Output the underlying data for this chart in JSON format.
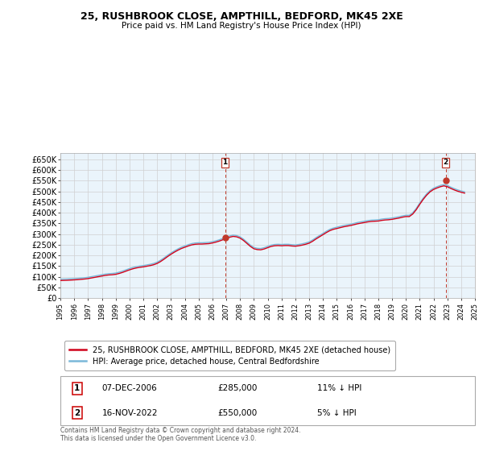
{
  "title": "25, RUSHBROOK CLOSE, AMPTHILL, BEDFORD, MK45 2XE",
  "subtitle": "Price paid vs. HM Land Registry's House Price Index (HPI)",
  "ylim": [
    0,
    680000
  ],
  "yticks": [
    0,
    50000,
    100000,
    150000,
    200000,
    250000,
    300000,
    350000,
    400000,
    450000,
    500000,
    550000,
    600000,
    650000
  ],
  "ytick_labels": [
    "£0",
    "£50K",
    "£100K",
    "£150K",
    "£200K",
    "£250K",
    "£300K",
    "£350K",
    "£400K",
    "£450K",
    "£500K",
    "£550K",
    "£600K",
    "£650K"
  ],
  "sale1_date": 2006.92,
  "sale1_price": 285000,
  "sale1_label": "1",
  "sale2_date": 2022.88,
  "sale2_price": 550000,
  "sale2_label": "2",
  "hpi_color": "#7ab8d9",
  "price_color": "#d0021b",
  "sale_marker_color": "#c0392b",
  "vline_color": "#c0392b",
  "grid_color": "#d0d0d0",
  "background_color": "#ffffff",
  "chart_bg": "#eaf4fb",
  "legend1_label": "25, RUSHBROOK CLOSE, AMPTHILL, BEDFORD, MK45 2XE (detached house)",
  "legend2_label": "HPI: Average price, detached house, Central Bedfordshire",
  "table_row1": [
    "1",
    "07-DEC-2006",
    "£285,000",
    "11% ↓ HPI"
  ],
  "table_row2": [
    "2",
    "16-NOV-2022",
    "£550,000",
    "5% ↓ HPI"
  ],
  "footer": "Contains HM Land Registry data © Crown copyright and database right 2024.\nThis data is licensed under the Open Government Licence v3.0.",
  "hpi_data_years": [
    1995.0,
    1995.25,
    1995.5,
    1995.75,
    1996.0,
    1996.25,
    1996.5,
    1996.75,
    1997.0,
    1997.25,
    1997.5,
    1997.75,
    1998.0,
    1998.25,
    1998.5,
    1998.75,
    1999.0,
    1999.25,
    1999.5,
    1999.75,
    2000.0,
    2000.25,
    2000.5,
    2000.75,
    2001.0,
    2001.25,
    2001.5,
    2001.75,
    2002.0,
    2002.25,
    2002.5,
    2002.75,
    2003.0,
    2003.25,
    2003.5,
    2003.75,
    2004.0,
    2004.25,
    2004.5,
    2004.75,
    2005.0,
    2005.25,
    2005.5,
    2005.75,
    2006.0,
    2006.25,
    2006.5,
    2006.75,
    2007.0,
    2007.25,
    2007.5,
    2007.75,
    2008.0,
    2008.25,
    2008.5,
    2008.75,
    2009.0,
    2009.25,
    2009.5,
    2009.75,
    2010.0,
    2010.25,
    2010.5,
    2010.75,
    2011.0,
    2011.25,
    2011.5,
    2011.75,
    2012.0,
    2012.25,
    2012.5,
    2012.75,
    2013.0,
    2013.25,
    2013.5,
    2013.75,
    2014.0,
    2014.25,
    2014.5,
    2014.75,
    2015.0,
    2015.25,
    2015.5,
    2015.75,
    2016.0,
    2016.25,
    2016.5,
    2016.75,
    2017.0,
    2017.25,
    2017.5,
    2017.75,
    2018.0,
    2018.25,
    2018.5,
    2018.75,
    2019.0,
    2019.25,
    2019.5,
    2019.75,
    2020.0,
    2020.25,
    2020.5,
    2020.75,
    2021.0,
    2021.25,
    2021.5,
    2021.75,
    2022.0,
    2022.25,
    2022.5,
    2022.75,
    2023.0,
    2023.25,
    2023.5,
    2023.75,
    2024.0,
    2024.25
  ],
  "hpi_data_values": [
    88000,
    88500,
    89000,
    90000,
    91000,
    92000,
    93500,
    95000,
    97000,
    100000,
    103000,
    106000,
    109000,
    112000,
    114000,
    115000,
    117000,
    121000,
    126000,
    132000,
    138000,
    143000,
    147000,
    150000,
    152000,
    155000,
    158000,
    162000,
    168000,
    177000,
    188000,
    200000,
    211000,
    221000,
    230000,
    238000,
    244000,
    250000,
    255000,
    258000,
    259000,
    259000,
    260000,
    261000,
    264000,
    268000,
    273000,
    279000,
    285000,
    291000,
    295000,
    293000,
    287000,
    276000,
    262000,
    248000,
    237000,
    233000,
    232000,
    236000,
    242000,
    248000,
    251000,
    252000,
    251000,
    252000,
    252000,
    250000,
    249000,
    251000,
    254000,
    258000,
    263000,
    272000,
    283000,
    293000,
    303000,
    313000,
    322000,
    328000,
    332000,
    336000,
    340000,
    343000,
    346000,
    350000,
    354000,
    357000,
    360000,
    363000,
    365000,
    366000,
    367000,
    370000,
    372000,
    373000,
    375000,
    378000,
    381000,
    385000,
    388000,
    388000,
    400000,
    420000,
    445000,
    468000,
    488000,
    504000,
    515000,
    522000,
    528000,
    532000,
    528000,
    520000,
    513000,
    507000,
    502000,
    498000
  ],
  "price_data_years": [
    1995.0,
    1995.25,
    1995.5,
    1995.75,
    1996.0,
    1996.25,
    1996.5,
    1996.75,
    1997.0,
    1997.25,
    1997.5,
    1997.75,
    1998.0,
    1998.25,
    1998.5,
    1998.75,
    1999.0,
    1999.25,
    1999.5,
    1999.75,
    2000.0,
    2000.25,
    2000.5,
    2000.75,
    2001.0,
    2001.25,
    2001.5,
    2001.75,
    2002.0,
    2002.25,
    2002.5,
    2002.75,
    2003.0,
    2003.25,
    2003.5,
    2003.75,
    2004.0,
    2004.25,
    2004.5,
    2004.75,
    2005.0,
    2005.25,
    2005.5,
    2005.75,
    2006.0,
    2006.25,
    2006.5,
    2006.75,
    2007.0,
    2007.25,
    2007.5,
    2007.75,
    2008.0,
    2008.25,
    2008.5,
    2008.75,
    2009.0,
    2009.25,
    2009.5,
    2009.75,
    2010.0,
    2010.25,
    2010.5,
    2010.75,
    2011.0,
    2011.25,
    2011.5,
    2011.75,
    2012.0,
    2012.25,
    2012.5,
    2012.75,
    2013.0,
    2013.25,
    2013.5,
    2013.75,
    2014.0,
    2014.25,
    2014.5,
    2014.75,
    2015.0,
    2015.25,
    2015.5,
    2015.75,
    2016.0,
    2016.25,
    2016.5,
    2016.75,
    2017.0,
    2017.25,
    2017.5,
    2017.75,
    2018.0,
    2018.25,
    2018.5,
    2018.75,
    2019.0,
    2019.25,
    2019.5,
    2019.75,
    2020.0,
    2020.25,
    2020.5,
    2020.75,
    2021.0,
    2021.25,
    2021.5,
    2021.75,
    2022.0,
    2022.25,
    2022.5,
    2022.75,
    2023.0,
    2023.25,
    2023.5,
    2023.75,
    2024.0,
    2024.25
  ],
  "price_data_values": [
    82000,
    82500,
    83000,
    84000,
    85000,
    86000,
    87500,
    89000,
    91000,
    94000,
    97000,
    100000,
    103000,
    106000,
    108000,
    109000,
    111000,
    115000,
    120000,
    126000,
    132000,
    137000,
    141000,
    144000,
    146000,
    149000,
    152000,
    156000,
    162000,
    171000,
    182000,
    194000,
    205000,
    215000,
    224000,
    232000,
    238000,
    244000,
    249000,
    252000,
    253000,
    253000,
    254000,
    255000,
    258000,
    262000,
    267000,
    273000,
    279000,
    285000,
    289000,
    287000,
    281000,
    270000,
    256000,
    242000,
    231000,
    227000,
    226000,
    230000,
    236000,
    242000,
    245000,
    246000,
    245000,
    246000,
    246000,
    244000,
    243000,
    245000,
    248000,
    252000,
    257000,
    266000,
    277000,
    287000,
    297000,
    307000,
    316000,
    322000,
    326000,
    330000,
    334000,
    337000,
    340000,
    344000,
    348000,
    351000,
    354000,
    357000,
    359000,
    360000,
    361000,
    364000,
    366000,
    367000,
    369000,
    372000,
    375000,
    379000,
    382000,
    382000,
    394000,
    414000,
    439000,
    462000,
    482000,
    498000,
    509000,
    516000,
    522000,
    526000,
    522000,
    514000,
    507000,
    501000,
    496000,
    492000
  ]
}
